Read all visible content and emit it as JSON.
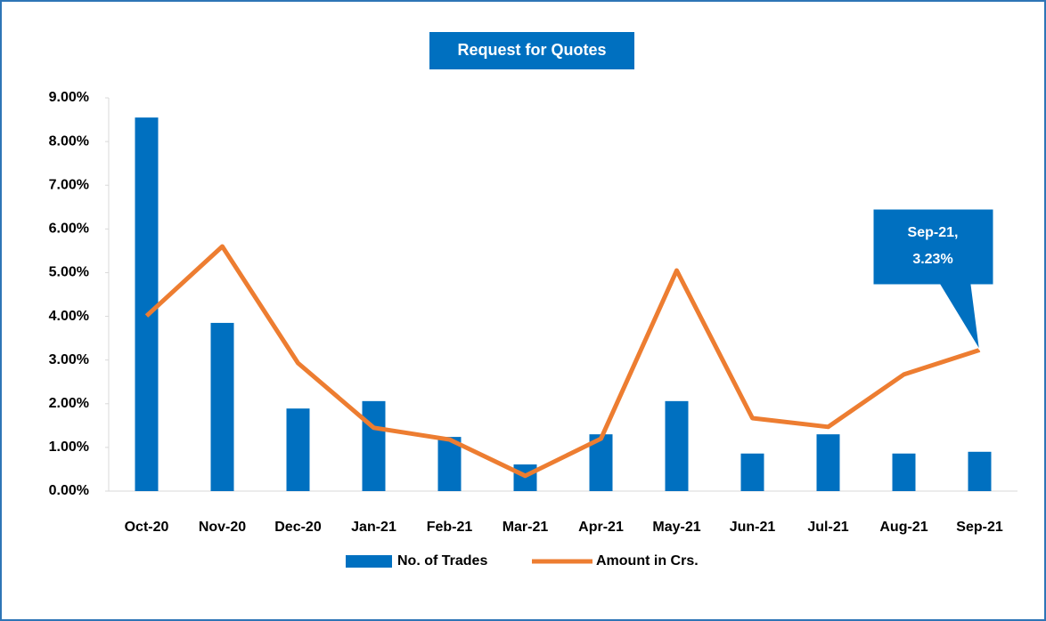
{
  "chart_data": {
    "type": "bar_line",
    "title": "Request for Quotes",
    "categories": [
      "Oct-20",
      "Nov-20",
      "Dec-20",
      "Jan-21",
      "Feb-21",
      "Mar-21",
      "Apr-21",
      "May-21",
      "Jun-21",
      "Jul-21",
      "Aug-21",
      "Sep-21"
    ],
    "series": [
      {
        "name": "No. of Trades",
        "type": "bar",
        "color": "#0070c0",
        "values": [
          8.55,
          3.85,
          1.89,
          2.06,
          1.24,
          0.61,
          1.3,
          2.06,
          0.86,
          1.3,
          0.86,
          0.9
        ]
      },
      {
        "name": "Amount in Crs.",
        "type": "line",
        "color": "#ed7d31",
        "values": [
          4.01,
          5.6,
          2.93,
          1.45,
          1.18,
          0.35,
          1.2,
          5.05,
          1.67,
          1.47,
          2.67,
          3.23
        ]
      }
    ],
    "ylim": [
      0,
      9
    ],
    "yticks": [
      {
        "value": 0,
        "label": "0.00%"
      },
      {
        "value": 1,
        "label": "1.00%"
      },
      {
        "value": 2,
        "label": "2.00%"
      },
      {
        "value": 3,
        "label": "3.00%"
      },
      {
        "value": 4,
        "label": "4.00%"
      },
      {
        "value": 5,
        "label": "5.00%"
      },
      {
        "value": 6,
        "label": "6.00%"
      },
      {
        "value": 7,
        "label": "7.00%"
      },
      {
        "value": 8,
        "label": "8.00%"
      },
      {
        "value": 9,
        "label": "9.00%"
      }
    ],
    "grid": false,
    "legend": "bottom",
    "annotation": {
      "lines": [
        "Sep-21,",
        "3.23%"
      ],
      "color": "#0070c0"
    }
  }
}
